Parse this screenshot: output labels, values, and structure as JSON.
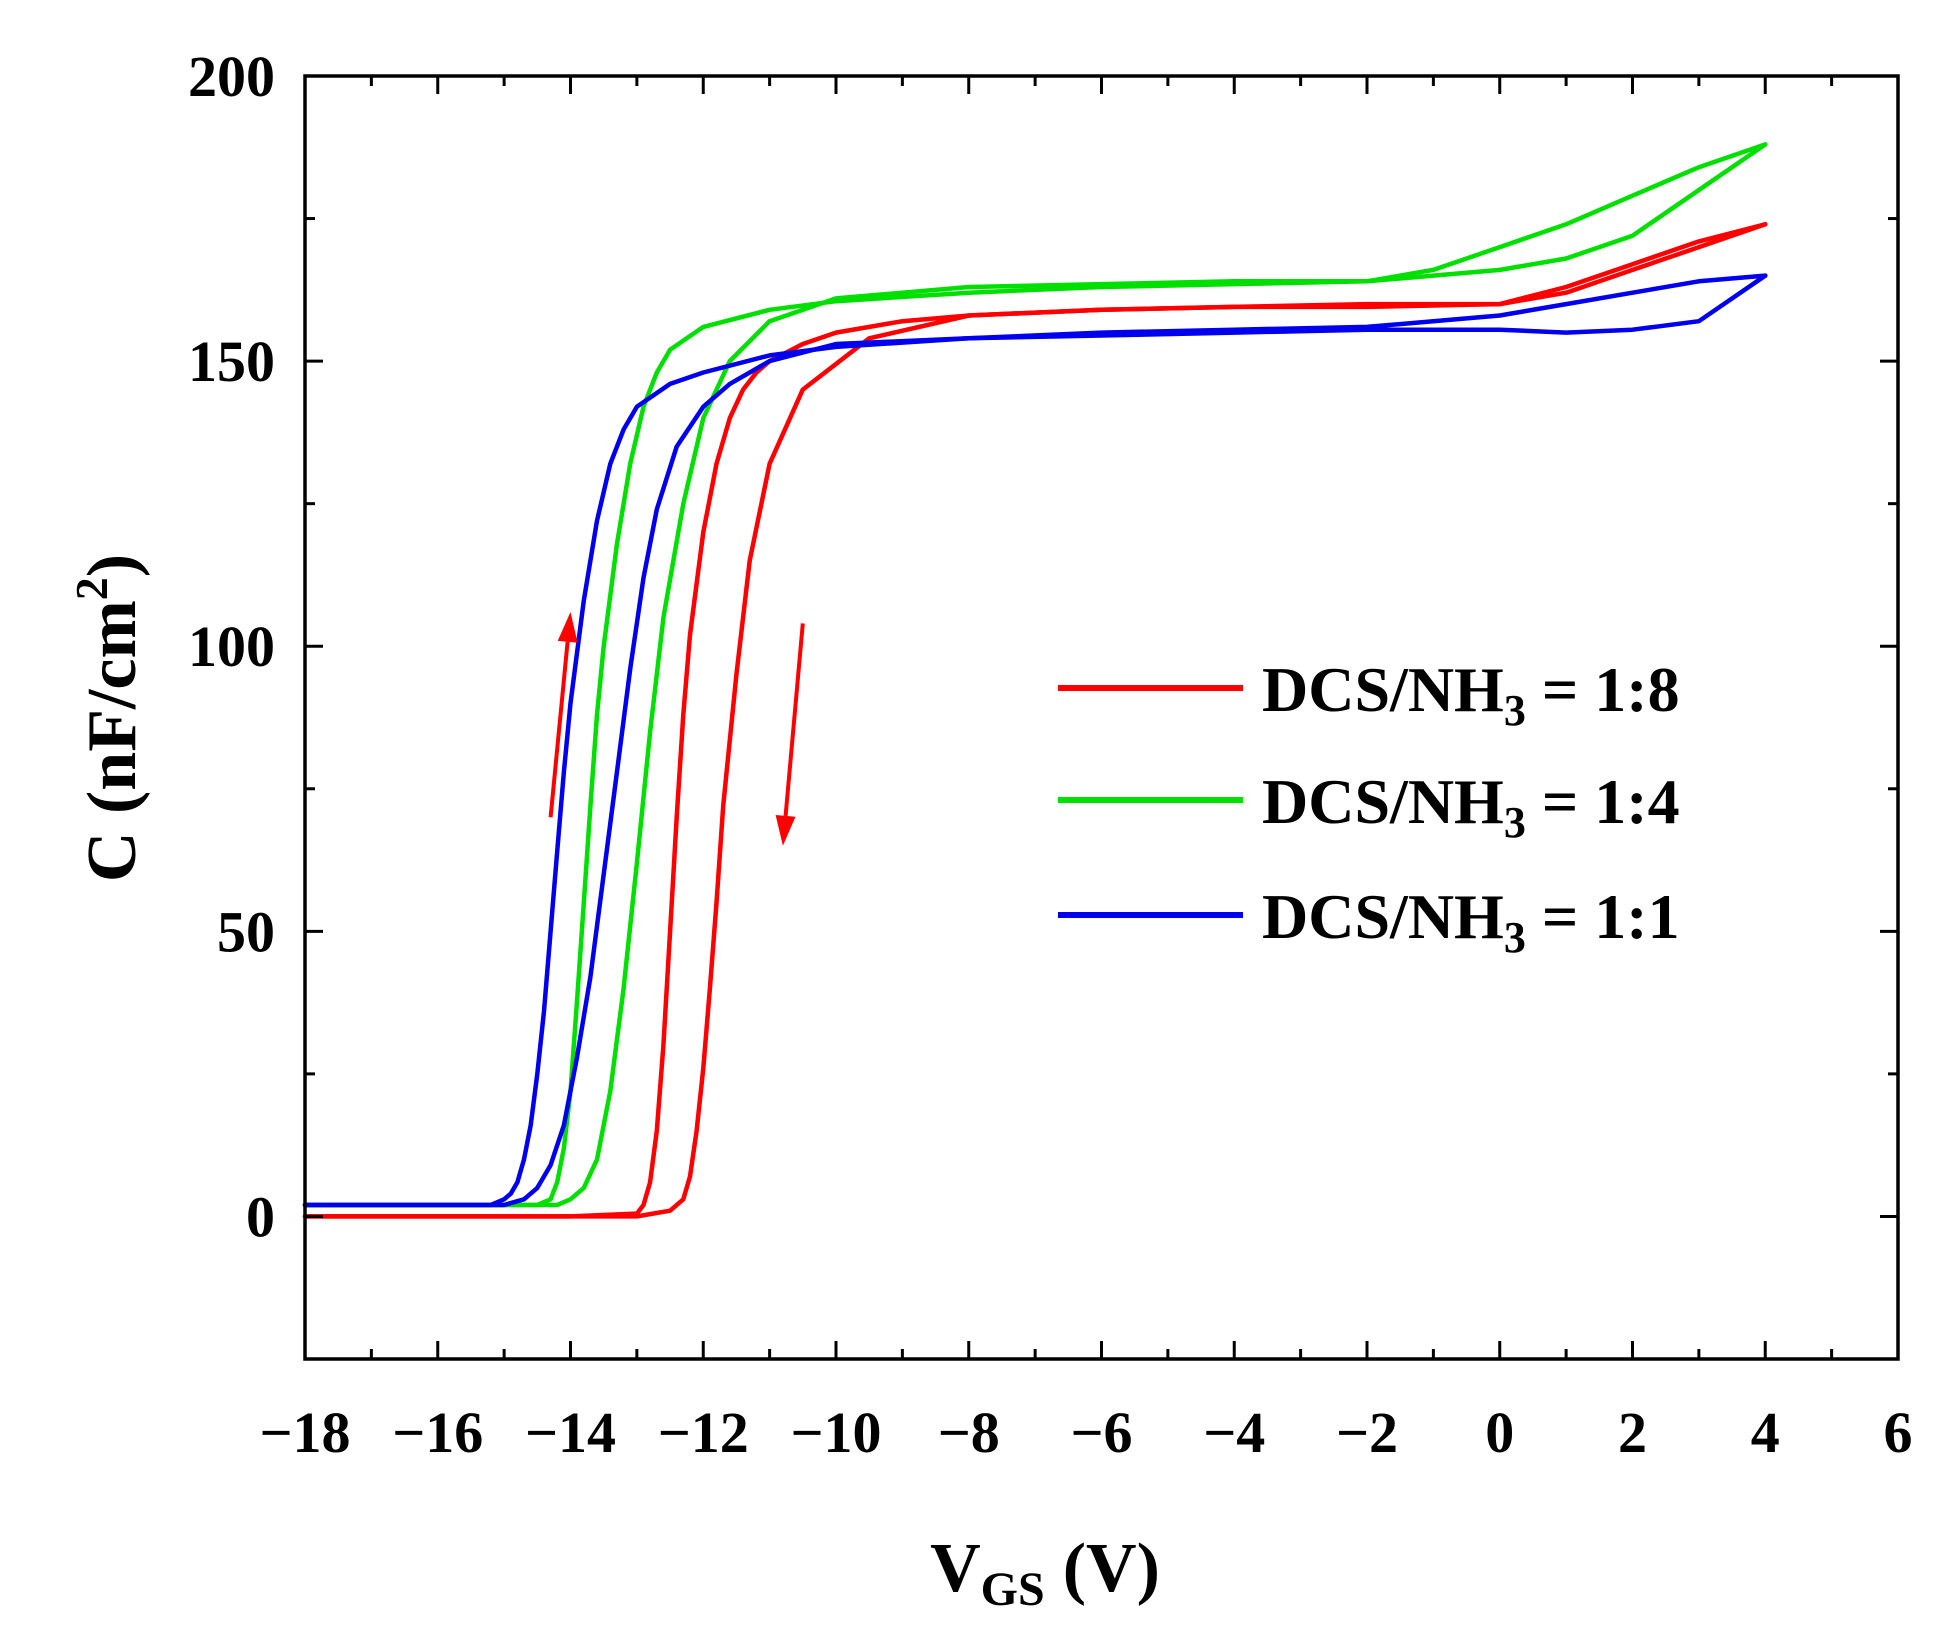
{
  "chart_data": {
    "type": "line",
    "title": "",
    "xlabel": {
      "main": "V",
      "sub": "GS",
      "unit": "(V)"
    },
    "ylabel": {
      "main": "C (nF/cm",
      "sup": "2",
      "end": ")"
    },
    "xlim": [
      -18,
      6
    ],
    "ylim": [
      -25,
      200
    ],
    "xticks": [
      -18,
      -16,
      -14,
      -12,
      -10,
      -8,
      -6,
      -4,
      -2,
      0,
      2,
      4,
      6
    ],
    "xtick_labels": [
      "−18",
      "−16",
      "−14",
      "−12",
      "−10",
      "−8",
      "−6",
      "−4",
      "−2",
      "0",
      "2",
      "4",
      "6"
    ],
    "yticks": [
      0,
      50,
      100,
      150,
      200
    ],
    "ytick_labels": [
      "0",
      "50",
      "100",
      "150",
      "200"
    ],
    "grid": false,
    "legend_position": "center-right",
    "sweep_arrows": [
      {
        "direction": "up",
        "from": [
          -14.3,
          70
        ],
        "to": [
          -14.0,
          106
        ],
        "color": "#ff0000"
      },
      {
        "direction": "down",
        "from": [
          -10.5,
          104
        ],
        "to": [
          -10.8,
          65
        ],
        "color": "#ff0000"
      }
    ],
    "series": [
      {
        "name": "DCS/NH3 = 1:8",
        "legend": {
          "pre": "DCS/NH",
          "sub": "3",
          "post": " = 1:8"
        },
        "color": "#ff0000",
        "forward": {
          "x": [
            -18,
            -14,
            -13,
            -12.9,
            -12.8,
            -12.7,
            -12.6,
            -12.5,
            -12.4,
            -12.3,
            -12.2,
            -12.0,
            -11.8,
            -11.6,
            -11.4,
            -11.2,
            -11.0,
            -10.5,
            -10.0,
            -9.0,
            -8.0,
            -6.0,
            -4.0,
            -2.0,
            0,
            1,
            2,
            3,
            4
          ],
          "y": [
            0,
            0,
            0.5,
            2,
            6,
            15,
            30,
            50,
            70,
            88,
            102,
            120,
            132,
            140,
            145,
            148,
            150,
            153,
            155,
            157,
            158,
            159,
            159.5,
            160,
            160,
            162,
            166,
            170,
            174
          ]
        },
        "reverse": {
          "x": [
            4,
            3,
            2,
            1,
            0,
            -2,
            -4,
            -6,
            -8,
            -9.5,
            -10.5,
            -11.0,
            -11.3,
            -11.5,
            -11.7,
            -11.8,
            -11.9,
            -12.0,
            -12.1,
            -12.2,
            -12.3,
            -12.5,
            -13,
            -18
          ],
          "y": [
            174,
            171,
            167,
            163,
            160,
            159.5,
            159.5,
            159,
            158,
            154,
            145,
            132,
            115,
            95,
            72,
            55,
            40,
            26,
            15,
            7,
            3,
            1,
            0,
            0
          ]
        }
      },
      {
        "name": "DCS/NH3 = 1:4",
        "legend": {
          "pre": "DCS/NH",
          "sub": "3",
          "post": " = 1:4"
        },
        "color": "#00e000",
        "forward": {
          "x": [
            -18,
            -14.5,
            -14.3,
            -14.2,
            -14.1,
            -14.0,
            -13.9,
            -13.8,
            -13.7,
            -13.6,
            -13.5,
            -13.3,
            -13.1,
            -12.9,
            -12.7,
            -12.5,
            -12.0,
            -11.0,
            -10.0,
            -8.0,
            -6.0,
            -4.0,
            -2.0,
            -1.0,
            0,
            1,
            2,
            3,
            4
          ],
          "y": [
            2,
            2,
            3,
            6,
            12,
            22,
            38,
            55,
            72,
            88,
            100,
            118,
            132,
            142,
            148,
            152,
            156,
            159,
            160.5,
            162,
            163,
            163.5,
            164,
            166,
            170,
            174,
            179,
            184,
            188
          ]
        },
        "reverse": {
          "x": [
            4,
            3,
            2,
            1,
            0,
            -1,
            -2,
            -4,
            -6,
            -8,
            -10,
            -11.0,
            -11.6,
            -12.0,
            -12.3,
            -12.6,
            -12.8,
            -13.0,
            -13.2,
            -13.4,
            -13.6,
            -13.8,
            -14.0,
            -14.2,
            -18
          ],
          "y": [
            188,
            180,
            172,
            168,
            166,
            165,
            164,
            164,
            163.5,
            163,
            161,
            157,
            150,
            140,
            125,
            105,
            85,
            62,
            40,
            22,
            10,
            5,
            3,
            2,
            2
          ]
        }
      },
      {
        "name": "DCS/NH3 = 1:1",
        "legend": {
          "pre": "DCS/NH",
          "sub": "3",
          "post": " = 1:1"
        },
        "color": "#0000ee",
        "forward": {
          "x": [
            -18,
            -15.2,
            -15.0,
            -14.9,
            -14.8,
            -14.7,
            -14.6,
            -14.5,
            -14.4,
            -14.3,
            -14.2,
            -14.1,
            -14.0,
            -13.8,
            -13.6,
            -13.4,
            -13.2,
            -13.0,
            -12.5,
            -12.0,
            -11.0,
            -10.0,
            -8.0,
            -6.0,
            -4.0,
            -2.0,
            0,
            1,
            2,
            3,
            4
          ],
          "y": [
            2,
            2,
            3,
            4,
            6,
            10,
            16,
            25,
            36,
            50,
            64,
            78,
            90,
            108,
            122,
            132,
            138,
            142,
            146,
            148,
            151,
            152.5,
            154,
            155,
            155.5,
            156,
            158,
            160,
            162,
            164,
            165
          ]
        },
        "reverse": {
          "x": [
            4,
            3,
            2,
            1,
            0,
            -2,
            -4,
            -6,
            -8,
            -10,
            -11.0,
            -11.6,
            -12.0,
            -12.4,
            -12.7,
            -12.9,
            -13.1,
            -13.3,
            -13.5,
            -13.7,
            -13.9,
            -14.1,
            -14.3,
            -14.5,
            -14.7,
            -15.0,
            -18
          ],
          "y": [
            165,
            157,
            155.5,
            155,
            155.5,
            155.5,
            155,
            154.5,
            154,
            153,
            150,
            146,
            142,
            135,
            124,
            112,
            96,
            78,
            60,
            42,
            28,
            16,
            9,
            5,
            3,
            2,
            2
          ]
        }
      }
    ]
  }
}
